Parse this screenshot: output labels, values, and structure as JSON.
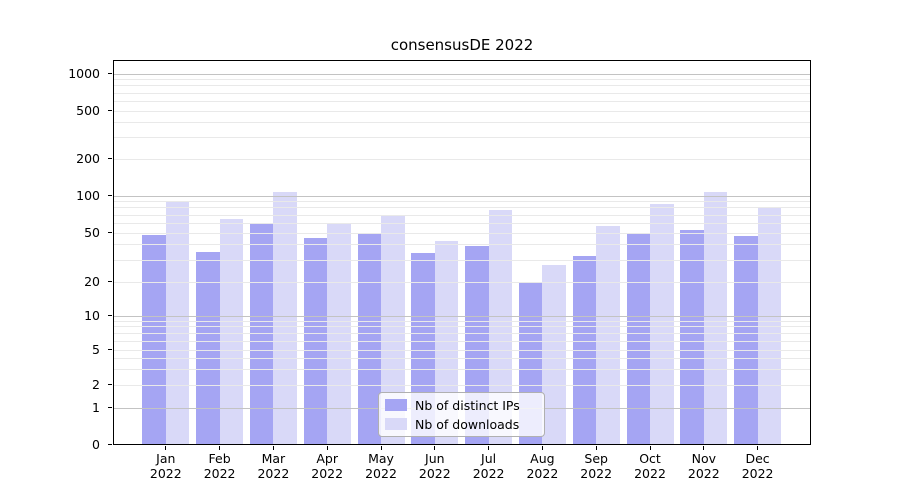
{
  "title": "consensusDE 2022",
  "chart_data": {
    "type": "bar",
    "title": "consensusDE 2022",
    "categories": [
      "Jan",
      "Feb",
      "Mar",
      "Apr",
      "May",
      "Jun",
      "Jul",
      "Aug",
      "Sep",
      "Oct",
      "Nov",
      "Dec"
    ],
    "x_tick_second_line": "2022",
    "series": [
      {
        "name": "Nb of distinct IPs",
        "color": "#a5a5f3",
        "values": [
          48,
          35,
          60,
          45,
          49,
          34,
          39,
          20,
          32,
          50,
          52,
          47
        ]
      },
      {
        "name": "Nb of downloads",
        "color": "#d9d9f8",
        "values": [
          90,
          64,
          106,
          60,
          70,
          43,
          76,
          27,
          57,
          85,
          106,
          81
        ]
      }
    ],
    "y_ticks": [
      0,
      1,
      2,
      5,
      10,
      20,
      50,
      100,
      200,
      500,
      1000
    ],
    "yscale": "symlog",
    "ylim": [
      0,
      1000
    ],
    "xlabel": "",
    "ylabel": "",
    "grid": "horizontal major and minor gridlines, drawn over bars",
    "legend_position": "lower center inside plot"
  },
  "legend": {
    "items": [
      {
        "label": "Nb of distinct IPs",
        "color": "#a5a5f3"
      },
      {
        "label": "Nb of downloads",
        "color": "#d9d9f8"
      }
    ]
  },
  "colors": {
    "background": "#ffffff",
    "grid_major": "#c3c3c3",
    "grid_minor": "#e9e9e9",
    "spine": "#000000",
    "text": "#000000",
    "legend_border": "#b0b0b0"
  }
}
